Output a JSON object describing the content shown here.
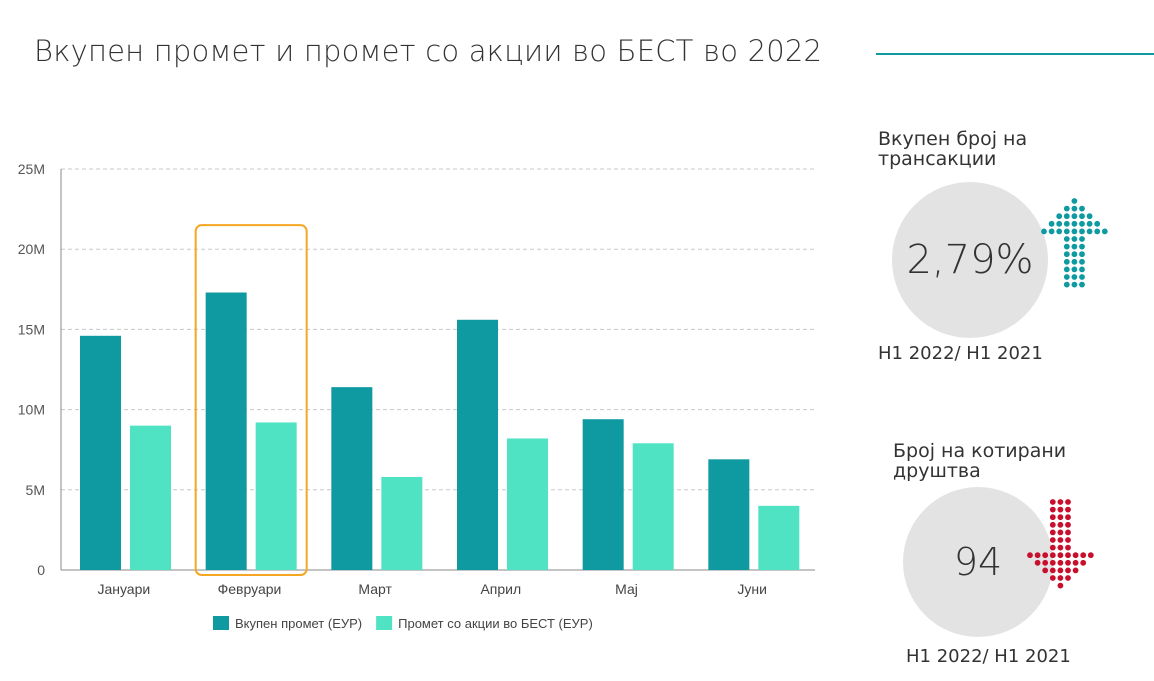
{
  "title": "Вкупен промет и промет со акции во БЕСТ во 2022",
  "chart_data": {
    "type": "bar",
    "categories": [
      "Јануари",
      "Февруари",
      "Март",
      "Април",
      "Мај",
      "Јуни"
    ],
    "series": [
      {
        "name": "Вкупен промет (ЕУР)",
        "values": [
          14.6,
          17.3,
          11.4,
          15.6,
          9.4,
          6.9
        ],
        "color": "#0e9aa0"
      },
      {
        "name": "Промет со акции во БЕСТ (ЕУР)",
        "values": [
          9.0,
          9.2,
          5.8,
          8.2,
          7.9,
          4.0
        ],
        "color": "#4fe3c3"
      }
    ],
    "yticks": [
      "0",
      "5M",
      "10M",
      "15M",
      "20M",
      "25M"
    ],
    "ylim": [
      0,
      25
    ],
    "unit": "M",
    "grid": true,
    "legend_position": "bottom",
    "highlighted_category": "Февруари",
    "highlight_color": "#f5a623"
  },
  "kpis": [
    {
      "label_line1": "Вкупен број на",
      "label_line2": "трансакции",
      "value": "2,79%",
      "period": "H1 2022/ H1 2021",
      "trend": "up",
      "arrow_color": "#0e9aa0",
      "arrow_icon": "arrow-up-icon"
    },
    {
      "label_line1": "Број на котирани",
      "label_line2": "друштва",
      "value": "94",
      "period": "H1 2022/ H1 2021",
      "trend": "down",
      "arrow_color": "#c8102e",
      "arrow_icon": "arrow-down-icon"
    }
  ]
}
